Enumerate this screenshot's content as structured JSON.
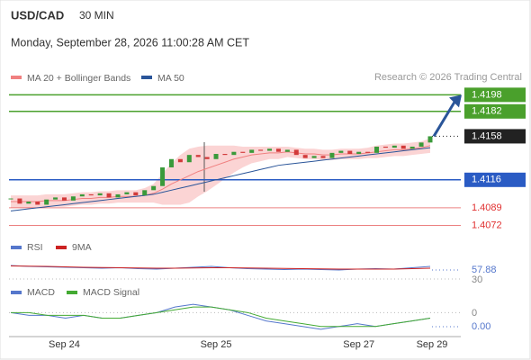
{
  "header": {
    "symbol": "USD/CAD",
    "timeframe": "30 MIN",
    "datetime": "Monday, September 28, 2026 11:00:28 AM CET",
    "credit": "Research © 2026 Trading Central"
  },
  "chart_data": [
    {
      "type": "candlestick",
      "ylim": [
        1.4062,
        1.4207
      ],
      "categories": [
        null,
        null,
        null,
        null,
        null,
        null,
        "Sep 24",
        null,
        null,
        null,
        null,
        null,
        null,
        null,
        null,
        null,
        null,
        null,
        null,
        null,
        null,
        null,
        null,
        "Sep 25",
        null,
        null,
        null,
        null,
        null,
        null,
        null,
        null,
        null,
        null,
        null,
        null,
        null,
        null,
        null,
        "Sep 27",
        null,
        null,
        null,
        null,
        null,
        null,
        null,
        "Sep 29"
      ],
      "up_color": "#3a9a3a",
      "down_color": "#d23a3a",
      "closes": [
        1.4098,
        1.4093,
        1.4095,
        1.4092,
        1.4097,
        1.4099,
        1.4096,
        1.41,
        1.4102,
        1.4101,
        1.4103,
        1.4099,
        1.4102,
        1.4104,
        1.4101,
        1.4106,
        1.411,
        1.4128,
        1.4136,
        1.4133,
        1.414,
        1.4138,
        1.4136,
        1.4141,
        1.414,
        1.4143,
        1.4142,
        1.4145,
        1.4144,
        1.4146,
        1.4143,
        1.4145,
        1.414,
        1.4137,
        1.4139,
        1.4137,
        1.4142,
        1.4144,
        1.4141,
        1.4143,
        1.4142,
        1.4148,
        1.4147,
        1.4149,
        1.4146,
        1.4148,
        1.4152,
        1.4158
      ],
      "series": [
        {
          "name": "MA 20 + Bollinger Bands",
          "color": "#f08080",
          "values": [
            1.4095,
            1.4095,
            1.4095,
            1.4095,
            1.4096,
            1.4096,
            1.4096,
            1.4097,
            1.4098,
            1.4098,
            1.4099,
            1.4099,
            1.41,
            1.41,
            1.41,
            1.4101,
            1.4103,
            1.4107,
            1.4112,
            1.4116,
            1.412,
            1.4124,
            1.4127,
            1.413,
            1.4133,
            1.4136,
            1.4138,
            1.414,
            1.4141,
            1.4142,
            1.4142,
            1.4143,
            1.4142,
            1.4141,
            1.4141,
            1.414,
            1.414,
            1.4141,
            1.4141,
            1.4141,
            1.4142,
            1.4143,
            1.4144,
            1.4145,
            1.4145,
            1.4146,
            1.4147,
            1.4149
          ],
          "upper": [
            1.4101,
            1.4101,
            1.4101,
            1.4101,
            1.4102,
            1.4102,
            1.4102,
            1.4103,
            1.4104,
            1.4104,
            1.4105,
            1.4105,
            1.4106,
            1.4106,
            1.4106,
            1.4108,
            1.4112,
            1.4122,
            1.4132,
            1.414,
            1.4146,
            1.4148,
            1.4149,
            1.4149,
            1.4149,
            1.4149,
            1.4148,
            1.4148,
            1.4148,
            1.4148,
            1.4148,
            1.4148,
            1.4147,
            1.4146,
            1.4146,
            1.4145,
            1.4145,
            1.4146,
            1.4146,
            1.4146,
            1.4147,
            1.4149,
            1.415,
            1.4151,
            1.4151,
            1.4152,
            1.4153,
            1.4156
          ],
          "lower": [
            1.4089,
            1.4089,
            1.4089,
            1.4089,
            1.409,
            1.409,
            1.409,
            1.4091,
            1.4092,
            1.4092,
            1.4093,
            1.4093,
            1.4094,
            1.4094,
            1.4094,
            1.4094,
            1.4094,
            1.4092,
            1.4092,
            1.4092,
            1.4094,
            1.41,
            1.4105,
            1.4111,
            1.4117,
            1.4123,
            1.4128,
            1.4132,
            1.4134,
            1.4136,
            1.4136,
            1.4138,
            1.4137,
            1.4136,
            1.4136,
            1.4135,
            1.4135,
            1.4136,
            1.4136,
            1.4136,
            1.4137,
            1.4137,
            1.4138,
            1.4139,
            1.4139,
            1.414,
            1.4141,
            1.4142
          ],
          "band_color": "#fbd4d4"
        },
        {
          "name": "MA 50",
          "color": "#2a5599",
          "values": [
            1.4086,
            1.4087,
            1.4088,
            1.4089,
            1.409,
            1.4091,
            1.4092,
            1.4093,
            1.4094,
            1.4095,
            1.4096,
            1.4097,
            1.4098,
            1.4099,
            1.41,
            1.4101,
            1.4102,
            1.4104,
            1.4106,
            1.4108,
            1.411,
            1.4112,
            1.4114,
            1.4116,
            1.4118,
            1.412,
            1.4122,
            1.4124,
            1.4126,
            1.4128,
            1.413,
            1.4131,
            1.4132,
            1.4133,
            1.4134,
            1.4135,
            1.4136,
            1.4137,
            1.4138,
            1.4139,
            1.414,
            1.4141,
            1.4142,
            1.4143,
            1.4144,
            1.4145,
            1.4146,
            1.4147
          ]
        }
      ],
      "levels": [
        {
          "value": 1.4198,
          "color": "#4aa02c",
          "boxed": true
        },
        {
          "value": 1.4182,
          "color": "#4aa02c",
          "boxed": true
        },
        {
          "value": 1.4158,
          "color": "#222222",
          "boxed": true,
          "dotted": true
        },
        {
          "value": 1.4116,
          "color": "#2a5bc4",
          "boxed": true
        },
        {
          "value": 1.4089,
          "color": "#e03030",
          "boxed": false
        },
        {
          "value": 1.4072,
          "color": "#e03030",
          "boxed": false
        }
      ]
    },
    {
      "type": "line",
      "ylim": [
        20,
        80
      ],
      "yticks": [
        30
      ],
      "current_label": "57.88",
      "series": [
        {
          "name": "RSI",
          "color": "#5577cc",
          "values": [
            60,
            58,
            57,
            56,
            55,
            54,
            55,
            53,
            52,
            54,
            56,
            58,
            55,
            53,
            52,
            51,
            52,
            51,
            50,
            52,
            53,
            52,
            55,
            58
          ]
        },
        {
          "name": "9MA",
          "color": "#cc2222",
          "values": [
            59,
            58.5,
            58,
            57,
            56,
            55.5,
            55,
            54.5,
            54,
            54,
            54.5,
            55,
            55,
            54.5,
            54,
            53.5,
            53,
            52.5,
            52,
            52,
            52,
            52,
            53,
            54
          ]
        }
      ]
    },
    {
      "type": "line",
      "ylim": [
        -0.0008,
        0.0004
      ],
      "yticks": [
        {
          "value": 0,
          "label": "0"
        }
      ],
      "current_label": "0.00",
      "series": [
        {
          "name": "MACD",
          "color": "#5577cc",
          "values": [
            0,
            -0.0001,
            -0.0001,
            -0.0002,
            -0.0001,
            -0.0002,
            -0.0002,
            -0.0001,
            0,
            0.0002,
            0.0003,
            0.0002,
            0.0001,
            -0.0001,
            -0.0003,
            -0.0004,
            -0.0005,
            -0.0006,
            -0.0005,
            -0.0004,
            -0.0005,
            -0.0004,
            -0.0003,
            -0.0002
          ]
        },
        {
          "name": "MACD Signal",
          "color": "#44aa33",
          "values": [
            0,
            0,
            -0.0001,
            -0.0001,
            -0.0001,
            -0.0002,
            -0.0002,
            -0.0001,
            0,
            0.0001,
            0.0002,
            0.0002,
            0.0001,
            0,
            -0.0002,
            -0.0003,
            -0.0004,
            -0.0005,
            -0.0005,
            -0.0005,
            -0.0005,
            -0.0004,
            -0.0003,
            -0.0002
          ]
        }
      ]
    }
  ]
}
